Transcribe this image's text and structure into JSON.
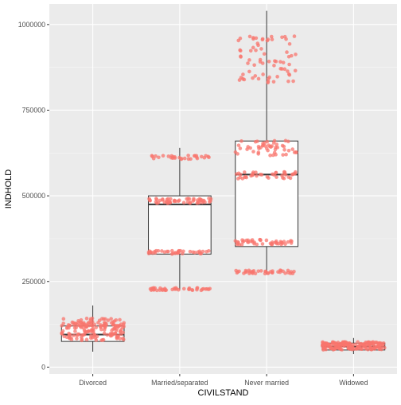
{
  "chart_data": {
    "type": "box",
    "title": "",
    "xlabel": "CIVILSTAND",
    "ylabel": "INDHOLD",
    "ylim": [
      -20000,
      1060000
    ],
    "y_ticks": [
      0,
      250000,
      500000,
      750000,
      1000000
    ],
    "y_tick_labels": [
      "0",
      "250000",
      "500000",
      "750000",
      "1000000"
    ],
    "categories": [
      "Divorced",
      "Married/separated",
      "Never married",
      "Widowed"
    ],
    "grid": true,
    "legend": "none",
    "colors": {
      "panel": "#EBEBEB",
      "grid_major": "#FFFFFF",
      "box_fill": "#FFFFFF",
      "box_line": "#333333",
      "points": "#F8766D",
      "text": "#4D4D4D",
      "title_text": "#000000"
    },
    "boxes": [
      {
        "category": "Divorced",
        "min": 45000,
        "q1": 75000,
        "median": 95000,
        "q3": 120000,
        "max": 180000,
        "point_clusters": [
          {
            "center": 110000,
            "spread": 65000,
            "count": 170
          }
        ]
      },
      {
        "category": "Married/separated",
        "min": 225000,
        "q1": 330000,
        "median": 475000,
        "q3": 500000,
        "max": 640000,
        "point_clusters": [
          {
            "center": 228000,
            "spread": 8000,
            "count": 40
          },
          {
            "center": 335000,
            "spread": 10000,
            "count": 40
          },
          {
            "center": 485000,
            "spread": 15000,
            "count": 55
          },
          {
            "center": 612000,
            "spread": 12000,
            "count": 30
          }
        ]
      },
      {
        "category": "Never married",
        "min": 270000,
        "q1": 352000,
        "median": 562000,
        "q3": 660000,
        "max": 1040000,
        "point_clusters": [
          {
            "center": 278000,
            "spread": 10000,
            "count": 40
          },
          {
            "center": 365000,
            "spread": 15000,
            "count": 45
          },
          {
            "center": 560000,
            "spread": 20000,
            "count": 40
          },
          {
            "center": 640000,
            "spread": 45000,
            "count": 50
          },
          {
            "center": 900000,
            "spread": 140000,
            "count": 70
          }
        ]
      },
      {
        "category": "Widowed",
        "min": 38000,
        "q1": 50000,
        "median": 60000,
        "q3": 70000,
        "max": 85000,
        "point_clusters": [
          {
            "center": 62000,
            "spread": 23000,
            "count": 180
          }
        ]
      }
    ]
  }
}
